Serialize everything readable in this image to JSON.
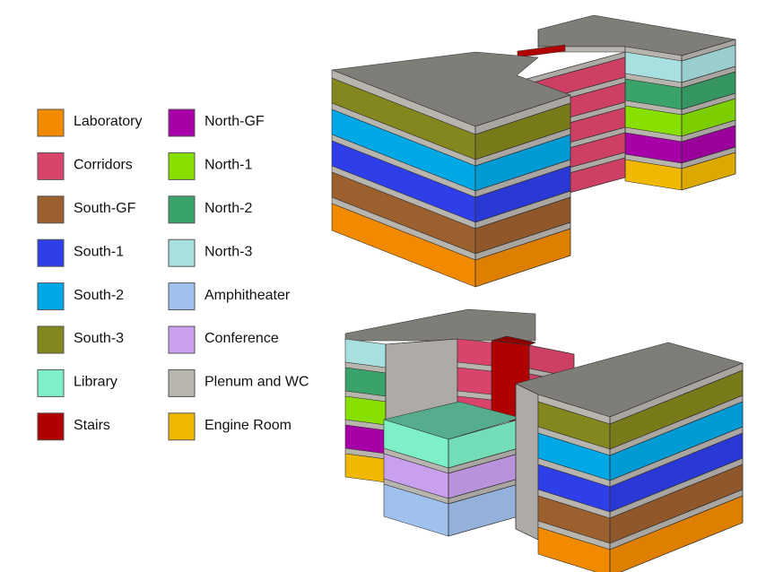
{
  "legend": {
    "items": [
      {
        "label": "Laboratory",
        "color": "#f28a00"
      },
      {
        "label": "Corridors",
        "color": "#d9446a"
      },
      {
        "label": "South-GF",
        "color": "#9c5f2e"
      },
      {
        "label": "South-1",
        "color": "#2e3ee8"
      },
      {
        "label": "South-2",
        "color": "#00a8e6"
      },
      {
        "label": "South-3",
        "color": "#84861e"
      },
      {
        "label": "Library",
        "color": "#7df0c8"
      },
      {
        "label": "Stairs",
        "color": "#b00000"
      },
      {
        "label": "North-GF",
        "color": "#a800a8"
      },
      {
        "label": "North-1",
        "color": "#88e000"
      },
      {
        "label": "North-2",
        "color": "#3aa36a"
      },
      {
        "label": "North-3",
        "color": "#a8e0e0"
      },
      {
        "label": "Amphitheater",
        "color": "#a0c0ee"
      },
      {
        "label": "Conference",
        "color": "#c8a0ee"
      },
      {
        "label": "Plenum and WC",
        "color": "#b8b4ae"
      },
      {
        "label": "Engine Room",
        "color": "#f0b800"
      }
    ]
  }
}
